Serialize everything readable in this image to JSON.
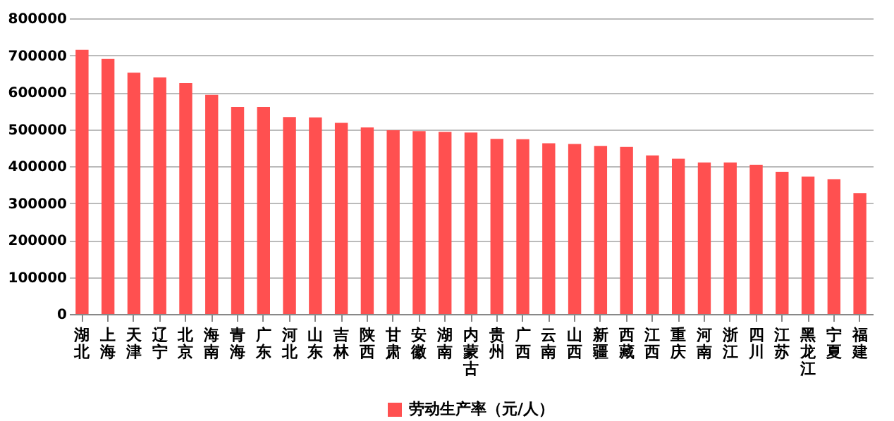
{
  "chart_data": {
    "type": "bar",
    "categories": [
      "湖北",
      "上海",
      "天津",
      "辽宁",
      "北京",
      "海南",
      "青海",
      "广东",
      "河北",
      "山东",
      "吉林",
      "陕西",
      "甘肃",
      "安徽",
      "湖南",
      "内蒙古",
      "贵州",
      "广西",
      "云南",
      "山西",
      "新疆",
      "西藏",
      "江西",
      "重庆",
      "河南",
      "浙江",
      "四川",
      "江苏",
      "黑龙江",
      "宁夏",
      "福建"
    ],
    "series": [
      {
        "name": "劳动生产率（元/人）",
        "color": "#ff5050",
        "values": [
          715000,
          690000,
          653000,
          640000,
          625000,
          593000,
          560000,
          560000,
          533000,
          532000,
          517000,
          505000,
          497000,
          495000,
          493000,
          491000,
          474000,
          473000,
          462000,
          460000,
          455000,
          452000,
          429000,
          420000,
          410000,
          410000,
          404000,
          385000,
          372000,
          365000,
          327000
        ]
      }
    ],
    "ylim": [
      0,
      800000
    ],
    "yticks": [
      0,
      100000,
      200000,
      300000,
      400000,
      500000,
      600000,
      700000,
      800000
    ],
    "grid": "y",
    "legend": "bottom"
  }
}
